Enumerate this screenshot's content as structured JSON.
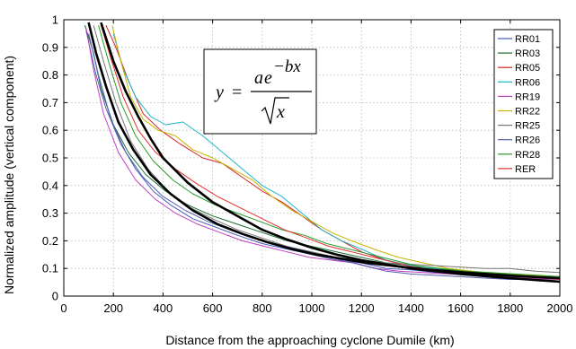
{
  "chart_data": {
    "type": "line",
    "title": "",
    "xlabel": "Distance from the approaching cyclone Dumile (km)",
    "ylabel": "Normalized amplitude (vertical component)",
    "xlim": [
      0,
      2000
    ],
    "ylim": [
      0,
      1
    ],
    "xticks": [
      0,
      200,
      400,
      600,
      800,
      1000,
      1200,
      1400,
      1600,
      1800,
      2000
    ],
    "yticks": [
      0,
      0.1,
      0.2,
      0.3,
      0.4,
      0.5,
      0.6,
      0.7,
      0.8,
      0.9,
      1
    ],
    "grid": true,
    "legend_position": "top-right",
    "annotation": {
      "lhs": "y",
      "equals": "=",
      "coefficient": "a",
      "base": "e",
      "exponent": "−bx",
      "radicand": "x"
    },
    "series": [
      {
        "name": "RR01",
        "color": "#4a5ab8",
        "x": [
          90,
          130,
          170,
          230,
          290,
          360,
          430,
          520,
          610,
          700,
          800,
          900,
          1000,
          1100,
          1200,
          1300,
          1400,
          1500,
          1600,
          1700,
          1800,
          1900,
          2000
        ],
        "y": [
          0.96,
          0.8,
          0.68,
          0.55,
          0.46,
          0.38,
          0.33,
          0.28,
          0.25,
          0.22,
          0.19,
          0.17,
          0.15,
          0.13,
          0.12,
          0.1,
          0.095,
          0.085,
          0.08,
          0.075,
          0.07,
          0.06,
          0.06
        ]
      },
      {
        "name": "RR03",
        "color": "#1a6e2e",
        "x": [
          85,
          120,
          150,
          200,
          260,
          330,
          410,
          500,
          600,
          700,
          800,
          900,
          1000,
          1100,
          1200,
          1300,
          1400,
          1500,
          1600,
          1700,
          1800,
          1900,
          2000
        ],
        "y": [
          0.98,
          0.88,
          0.75,
          0.62,
          0.52,
          0.44,
          0.38,
          0.33,
          0.29,
          0.26,
          0.23,
          0.2,
          0.18,
          0.16,
          0.14,
          0.12,
          0.11,
          0.1,
          0.09,
          0.085,
          0.08,
          0.075,
          0.07
        ]
      },
      {
        "name": "RR05",
        "color": "#d42020",
        "x": [
          170,
          210,
          260,
          320,
          390,
          470,
          560,
          640,
          720,
          800,
          880,
          960,
          1040,
          1120,
          1200,
          1300,
          1400,
          1500,
          1600,
          1700,
          1800,
          1900,
          2000
        ],
        "y": [
          0.98,
          0.9,
          0.78,
          0.66,
          0.6,
          0.55,
          0.5,
          0.48,
          0.43,
          0.38,
          0.34,
          0.29,
          0.24,
          0.2,
          0.16,
          0.13,
          0.11,
          0.09,
          0.08,
          0.07,
          0.06,
          0.06,
          0.05
        ]
      },
      {
        "name": "RR06",
        "color": "#20b4c8",
        "x": [
          200,
          240,
          290,
          350,
          410,
          480,
          560,
          640,
          720,
          800,
          880,
          960,
          1040,
          1120,
          1200,
          1300,
          1400,
          1500,
          1600,
          1700,
          1800,
          1900,
          2000
        ],
        "y": [
          0.95,
          0.82,
          0.72,
          0.65,
          0.62,
          0.63,
          0.58,
          0.52,
          0.46,
          0.4,
          0.36,
          0.3,
          0.24,
          0.2,
          0.17,
          0.13,
          0.11,
          0.1,
          0.08,
          0.07,
          0.065,
          0.06,
          0.06
        ]
      },
      {
        "name": "RR19",
        "color": "#c040c0",
        "x": [
          90,
          120,
          160,
          220,
          290,
          370,
          450,
          540,
          630,
          720,
          810,
          900,
          990,
          1080,
          1170,
          1260,
          1350,
          1450,
          1550,
          1650,
          1750,
          1850,
          2000
        ],
        "y": [
          0.97,
          0.82,
          0.66,
          0.52,
          0.42,
          0.35,
          0.3,
          0.26,
          0.23,
          0.2,
          0.18,
          0.16,
          0.14,
          0.13,
          0.12,
          0.1,
          0.09,
          0.085,
          0.08,
          0.075,
          0.07,
          0.065,
          0.06
        ]
      },
      {
        "name": "RR22",
        "color": "#c8b400",
        "x": [
          195,
          230,
          270,
          320,
          380,
          450,
          520,
          600,
          680,
          760,
          840,
          920,
          1000,
          1080,
          1160,
          1250,
          1350,
          1450,
          1550,
          1650,
          1750,
          1850,
          2000
        ],
        "y": [
          0.98,
          0.85,
          0.72,
          0.64,
          0.6,
          0.58,
          0.53,
          0.5,
          0.46,
          0.42,
          0.36,
          0.31,
          0.27,
          0.23,
          0.2,
          0.17,
          0.14,
          0.12,
          0.1,
          0.09,
          0.08,
          0.075,
          0.07
        ]
      },
      {
        "name": "RR25",
        "color": "#777777",
        "x": [
          120,
          160,
          210,
          270,
          340,
          420,
          510,
          600,
          700,
          800,
          900,
          1000,
          1100,
          1200,
          1300,
          1400,
          1500,
          1600,
          1700,
          1800,
          1900,
          2000
        ],
        "y": [
          0.98,
          0.85,
          0.7,
          0.56,
          0.46,
          0.38,
          0.32,
          0.28,
          0.24,
          0.21,
          0.18,
          0.16,
          0.14,
          0.13,
          0.12,
          0.115,
          0.11,
          0.105,
          0.1,
          0.1,
          0.09,
          0.085
        ]
      },
      {
        "name": "RR26",
        "color": "#5060b0",
        "x": [
          100,
          140,
          190,
          250,
          320,
          400,
          490,
          580,
          670,
          760,
          850,
          940,
          1030,
          1120,
          1210,
          1300,
          1400,
          1500,
          1600,
          1700,
          1800,
          1900,
          2000
        ],
        "y": [
          0.95,
          0.8,
          0.64,
          0.52,
          0.43,
          0.36,
          0.31,
          0.27,
          0.24,
          0.21,
          0.19,
          0.17,
          0.15,
          0.13,
          0.11,
          0.09,
          0.08,
          0.075,
          0.07,
          0.065,
          0.06,
          0.06,
          0.055
        ]
      },
      {
        "name": "RR28",
        "color": "#2a9a2a",
        "x": [
          140,
          180,
          230,
          290,
          360,
          440,
          520,
          610,
          700,
          790,
          880,
          970,
          1060,
          1150,
          1240,
          1330,
          1420,
          1520,
          1620,
          1720,
          1820,
          1920,
          2000
        ],
        "y": [
          0.98,
          0.85,
          0.7,
          0.58,
          0.49,
          0.42,
          0.37,
          0.33,
          0.3,
          0.27,
          0.24,
          0.22,
          0.19,
          0.17,
          0.15,
          0.13,
          0.11,
          0.1,
          0.09,
          0.085,
          0.08,
          0.075,
          0.07
        ]
      },
      {
        "name": "RER",
        "color": "#e03030",
        "x": [
          150,
          190,
          240,
          300,
          370,
          450,
          530,
          620,
          710,
          800,
          890,
          980,
          1070,
          1160,
          1250,
          1340,
          1430,
          1530,
          1630,
          1730,
          1830,
          1930,
          2000
        ],
        "y": [
          0.98,
          0.86,
          0.72,
          0.6,
          0.52,
          0.46,
          0.41,
          0.36,
          0.32,
          0.28,
          0.24,
          0.21,
          0.18,
          0.16,
          0.14,
          0.12,
          0.1,
          0.09,
          0.08,
          0.075,
          0.07,
          0.065,
          0.06
        ]
      }
    ],
    "fits": [
      {
        "color": "#000000",
        "x": [
          150,
          175,
          200,
          250,
          300,
          350,
          400,
          500,
          600,
          700,
          800,
          900,
          1000,
          1100,
          1200,
          1300,
          1400,
          1500,
          1600,
          1700,
          1800,
          1900,
          2000
        ],
        "y": [
          0.99,
          0.92,
          0.85,
          0.74,
          0.65,
          0.57,
          0.5,
          0.41,
          0.34,
          0.29,
          0.24,
          0.205,
          0.175,
          0.15,
          0.13,
          0.115,
          0.1,
          0.09,
          0.08,
          0.072,
          0.065,
          0.058,
          0.052
        ]
      },
      {
        "color": "#000000",
        "x": [
          100,
          130,
          170,
          220,
          280,
          350,
          430,
          520,
          620,
          720,
          820,
          920,
          1020,
          1120,
          1220,
          1320,
          1420,
          1520,
          1620,
          1720,
          1820,
          1920,
          2000
        ],
        "y": [
          0.99,
          0.88,
          0.76,
          0.63,
          0.53,
          0.44,
          0.37,
          0.31,
          0.26,
          0.225,
          0.195,
          0.17,
          0.15,
          0.135,
          0.12,
          0.11,
          0.1,
          0.092,
          0.085,
          0.079,
          0.073,
          0.068,
          0.065
        ]
      }
    ]
  }
}
